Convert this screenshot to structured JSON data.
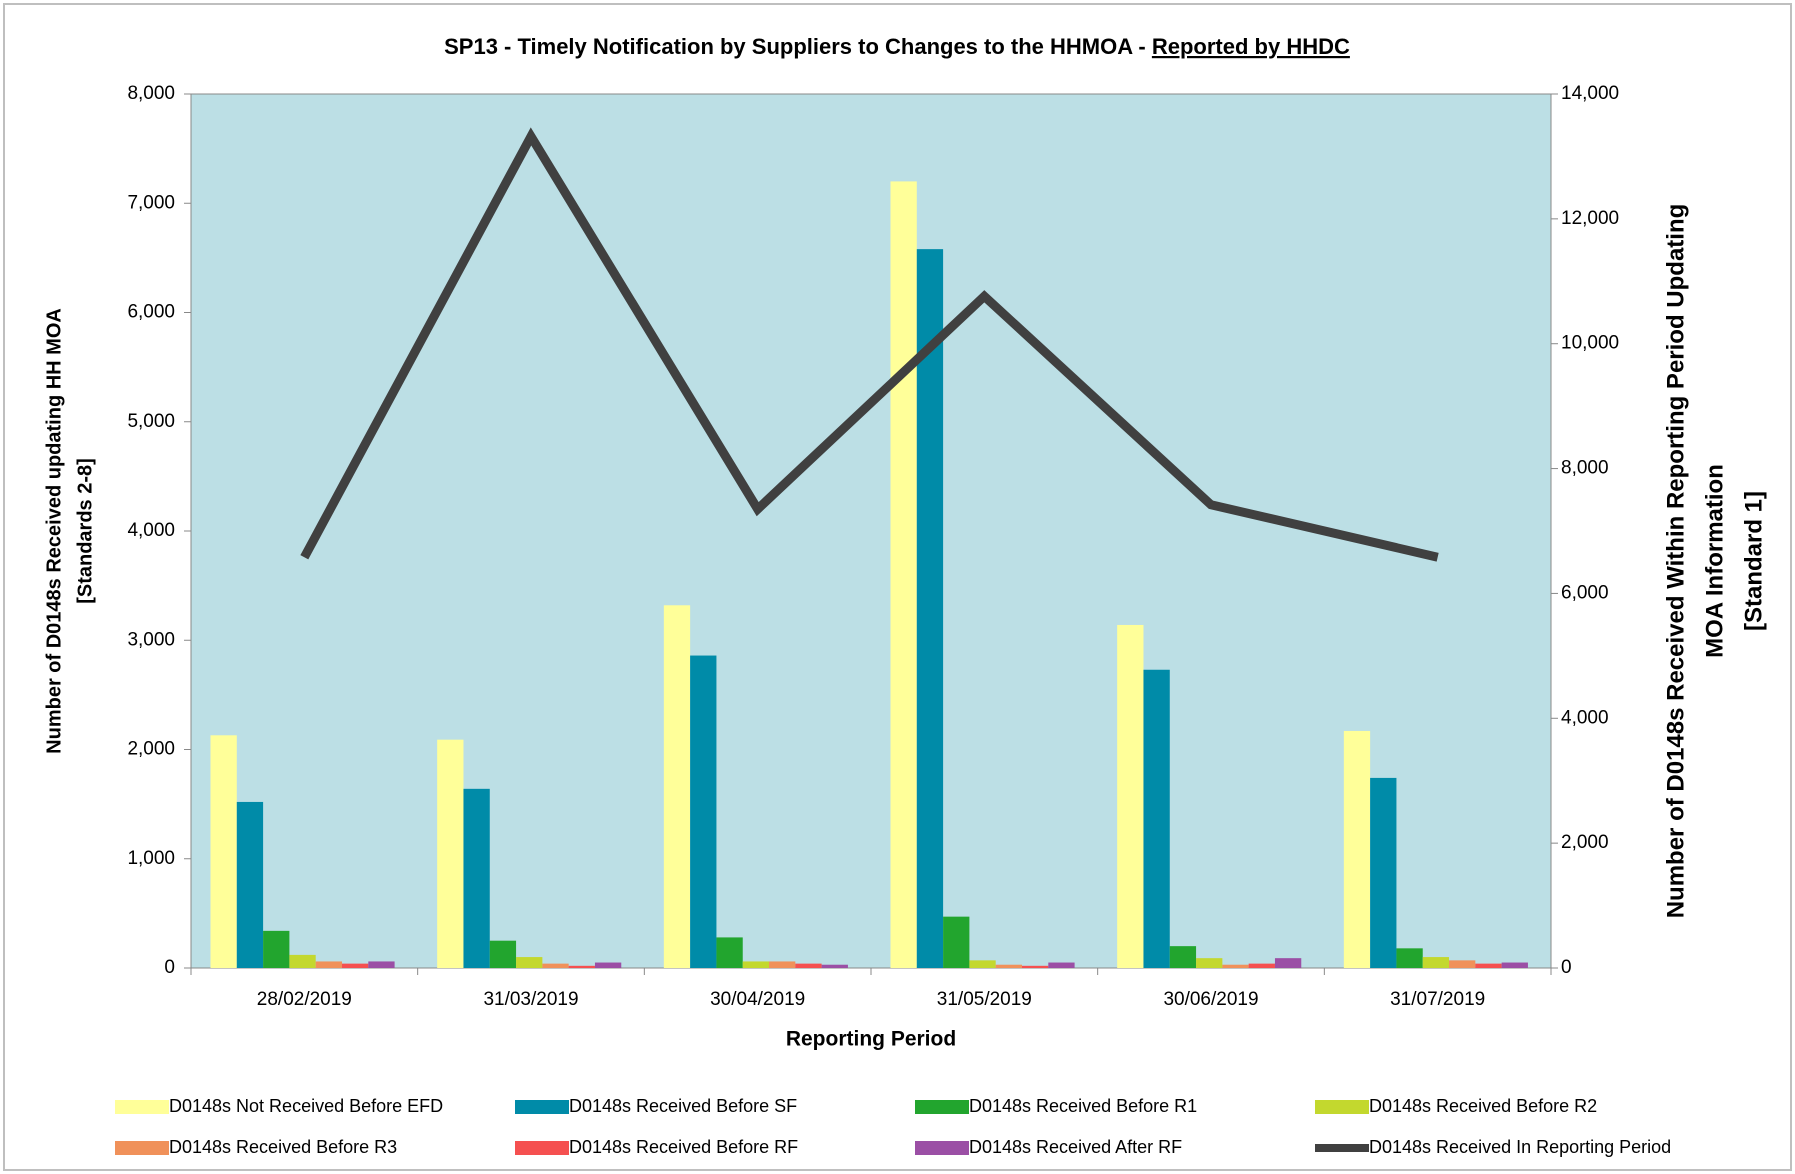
{
  "chart_data": {
    "type": "bar",
    "title": "SP13 - Timely Notification by Suppliers to Changes to the HHMOA -",
    "title_emphasis": "Reported by HHDC",
    "x_label": "Reporting Period",
    "y_label": [
      "Number of D0148s Received updating HH MOA",
      "[Standards 2-8]"
    ],
    "y2_label": [
      "Number of D0148s Received Within Reporting Period Updating",
      "MOA Information",
      "[Standard 1]"
    ],
    "categories": [
      "28/02/2019",
      "31/03/2019",
      "30/04/2019",
      "31/05/2019",
      "30/06/2019",
      "31/07/2019"
    ],
    "series": [
      {
        "name": "D0148s Not Received Before EFD",
        "color": "#ffff99",
        "values": [
          2130,
          2090,
          3320,
          7200,
          3140,
          2170
        ]
      },
      {
        "name": "D0148s Received Before SF",
        "color": "#008ba8",
        "values": [
          1520,
          1640,
          2860,
          6580,
          2730,
          1740
        ]
      },
      {
        "name": "D0148s Received Before R1",
        "color": "#22a52e",
        "values": [
          340,
          250,
          280,
          470,
          200,
          180
        ]
      },
      {
        "name": "D0148s Received Before R2",
        "color": "#c3d82e",
        "values": [
          120,
          100,
          60,
          70,
          90,
          100
        ]
      },
      {
        "name": "D0148s Received Before R3",
        "color": "#f0915a",
        "values": [
          60,
          40,
          60,
          30,
          30,
          70
        ]
      },
      {
        "name": "D0148s Received Before RF",
        "color": "#f55050",
        "values": [
          40,
          20,
          40,
          20,
          40,
          40
        ]
      },
      {
        "name": "D0148s Received After RF",
        "color": "#9b4fa5",
        "values": [
          60,
          50,
          30,
          50,
          90,
          50
        ]
      },
      {
        "name": "D0148s Received In Reporting Period",
        "color": "#404040",
        "type": "line",
        "axis": "y2",
        "values": [
          6580,
          13320,
          7350,
          10760,
          7420,
          6580
        ]
      }
    ],
    "ylim": [
      0,
      8000
    ],
    "yticks": [
      0,
      {
        "value": 1000,
        "label": "1,000"
      },
      {
        "value": 2000,
        "label": "2,000"
      },
      {
        "value": 3000,
        "label": "3,000"
      },
      {
        "value": 4000,
        "label": "4,000"
      },
      {
        "value": 5000,
        "label": "5,000"
      },
      {
        "value": 6000,
        "label": "6,000"
      },
      {
        "value": 7000,
        "label": "7,000"
      },
      {
        "value": 8000,
        "label": "8,000"
      }
    ],
    "y2lim": [
      0,
      14000
    ],
    "y2ticks": [
      0,
      {
        "value": 2000,
        "label": "2,000"
      },
      {
        "value": 4000,
        "label": "4,000"
      },
      {
        "value": 6000,
        "label": "6,000"
      },
      {
        "value": 8000,
        "label": "8,000"
      },
      {
        "value": 10000,
        "label": "10,000"
      },
      {
        "value": 12000,
        "label": "12,000"
      },
      {
        "value": 14000,
        "label": "14,000"
      }
    ],
    "plot_background": "#bcdfe5",
    "legend": "bottom"
  }
}
